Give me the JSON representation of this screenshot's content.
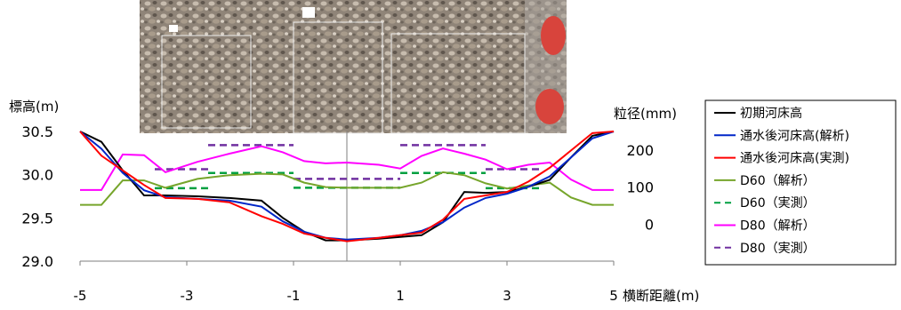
{
  "chart_data": {
    "type": "line",
    "title": "",
    "xlabel": "横断距離(m)",
    "ylabel_left": "標高(m)",
    "ylabel_right": "粒径(mm)",
    "xlim": [
      -5,
      5
    ],
    "ylim_left": [
      29.0,
      30.5
    ],
    "ylim_right": [
      -100,
      250
    ],
    "x_ticks": [
      -5,
      -3,
      -1,
      1,
      3,
      5
    ],
    "y_ticks_left": [
      "29.0",
      "29.5",
      "30.0",
      "30.5"
    ],
    "y_ticks_right": [
      "0",
      "100",
      "200"
    ],
    "y_ticks_right_values": [
      0,
      100,
      200
    ],
    "grid": false,
    "legend_position": "right",
    "background_photo": "gravel riverbed photograph with sampling grids",
    "series": [
      {
        "name": "初期河床高",
        "axis": "left",
        "style": "solid",
        "color": "#000000",
        "x": [
          -5,
          -4.6,
          -4.2,
          -3.8,
          -3.4,
          -2.8,
          -2.2,
          -1.6,
          -1.2,
          -0.8,
          -0.4,
          0,
          0.6,
          1.0,
          1.4,
          1.8,
          2.2,
          2.6,
          3.0,
          3.4,
          3.8,
          4.2,
          4.6,
          5
        ],
        "y": [
          30.55,
          30.38,
          30.05,
          29.76,
          29.76,
          29.75,
          29.73,
          29.7,
          29.5,
          29.34,
          29.24,
          29.24,
          29.26,
          29.28,
          29.3,
          29.45,
          29.8,
          29.79,
          29.8,
          29.86,
          29.94,
          30.2,
          30.45,
          30.65
        ]
      },
      {
        "name": "通水後河床高(解析)",
        "axis": "left",
        "style": "solid",
        "color": "#0026c8",
        "x": [
          -5,
          -4.6,
          -4.2,
          -3.8,
          -3.4,
          -2.8,
          -2.2,
          -1.6,
          -1.2,
          -0.8,
          -0.4,
          0,
          0.6,
          1.0,
          1.4,
          1.8,
          2.2,
          2.6,
          3.0,
          3.4,
          3.8,
          4.2,
          4.6,
          5
        ],
        "y": [
          30.55,
          30.3,
          30.02,
          29.82,
          29.74,
          29.72,
          29.7,
          29.63,
          29.46,
          29.34,
          29.27,
          29.25,
          29.27,
          29.3,
          29.35,
          29.45,
          29.62,
          29.73,
          29.78,
          29.86,
          29.98,
          30.2,
          30.42,
          30.65
        ]
      },
      {
        "name": "通水後河床高(実測)",
        "axis": "left",
        "style": "solid",
        "color": "#ff0000",
        "x": [
          -5,
          -4.6,
          -4.2,
          -3.8,
          -3.4,
          -2.8,
          -2.2,
          -1.6,
          -1.2,
          -0.8,
          -0.4,
          0,
          0.6,
          1.0,
          1.4,
          1.8,
          2.2,
          2.6,
          3.0,
          3.4,
          3.8,
          4.2,
          4.6,
          5
        ],
        "y": [
          30.55,
          30.22,
          30.05,
          29.88,
          29.73,
          29.72,
          29.68,
          29.52,
          29.43,
          29.32,
          29.27,
          29.23,
          29.27,
          29.3,
          29.33,
          29.48,
          29.72,
          29.76,
          29.8,
          29.92,
          30.08,
          30.28,
          30.48,
          30.65
        ]
      },
      {
        "name": "D60（解析）",
        "axis": "right",
        "style": "solid",
        "color": "#76a52b",
        "x": [
          -5,
          -4.6,
          -4.2,
          -3.8,
          -3.4,
          -2.8,
          -2.2,
          -1.6,
          -1.2,
          -0.8,
          -0.4,
          0,
          0.6,
          1.0,
          1.4,
          1.8,
          2.2,
          2.6,
          3.0,
          3.4,
          3.8,
          4.2,
          4.6,
          5
        ],
        "y": [
          52,
          52,
          118,
          118,
          98,
          122,
          132,
          136,
          134,
          112,
          100,
          98,
          98,
          98,
          112,
          140,
          132,
          110,
          96,
          104,
          112,
          72,
          52,
          52
        ]
      },
      {
        "name": "D60（実測）",
        "axis": "right",
        "style": "dashed",
        "color": "#00a040",
        "segments": [
          {
            "x": [
              -3.6,
              -2.6
            ],
            "y": 97
          },
          {
            "x": [
              -2.6,
              -1.0
            ],
            "y": 138
          },
          {
            "x": [
              -1.0,
              1.0
            ],
            "y": 98
          },
          {
            "x": [
              1.0,
              2.6
            ],
            "y": 138
          },
          {
            "x": [
              2.6,
              3.6
            ],
            "y": 97
          }
        ]
      },
      {
        "name": "D80（解析）",
        "axis": "right",
        "style": "solid",
        "color": "#ff00ff",
        "x": [
          -5,
          -4.6,
          -4.2,
          -3.8,
          -3.4,
          -2.8,
          -2.2,
          -1.6,
          -1.2,
          -0.8,
          -0.4,
          0,
          0.6,
          1.0,
          1.4,
          1.8,
          2.2,
          2.6,
          3.0,
          3.4,
          3.8,
          4.2,
          4.6,
          5
        ],
        "y": [
          92,
          92,
          188,
          186,
          140,
          168,
          190,
          210,
          194,
          170,
          164,
          166,
          160,
          150,
          184,
          204,
          190,
          174,
          148,
          160,
          166,
          120,
          92,
          92
        ]
      },
      {
        "name": "D80（実測）",
        "axis": "right",
        "style": "dashed",
        "color": "#7030a0",
        "segments": [
          {
            "x": [
              -3.6,
              -2.6
            ],
            "y": 148
          },
          {
            "x": [
              -2.6,
              -1.0
            ],
            "y": 213
          },
          {
            "x": [
              -1.0,
              1.0
            ],
            "y": 122
          },
          {
            "x": [
              1.0,
              2.6
            ],
            "y": 213
          },
          {
            "x": [
              2.6,
              3.6
            ],
            "y": 148
          }
        ]
      }
    ]
  }
}
